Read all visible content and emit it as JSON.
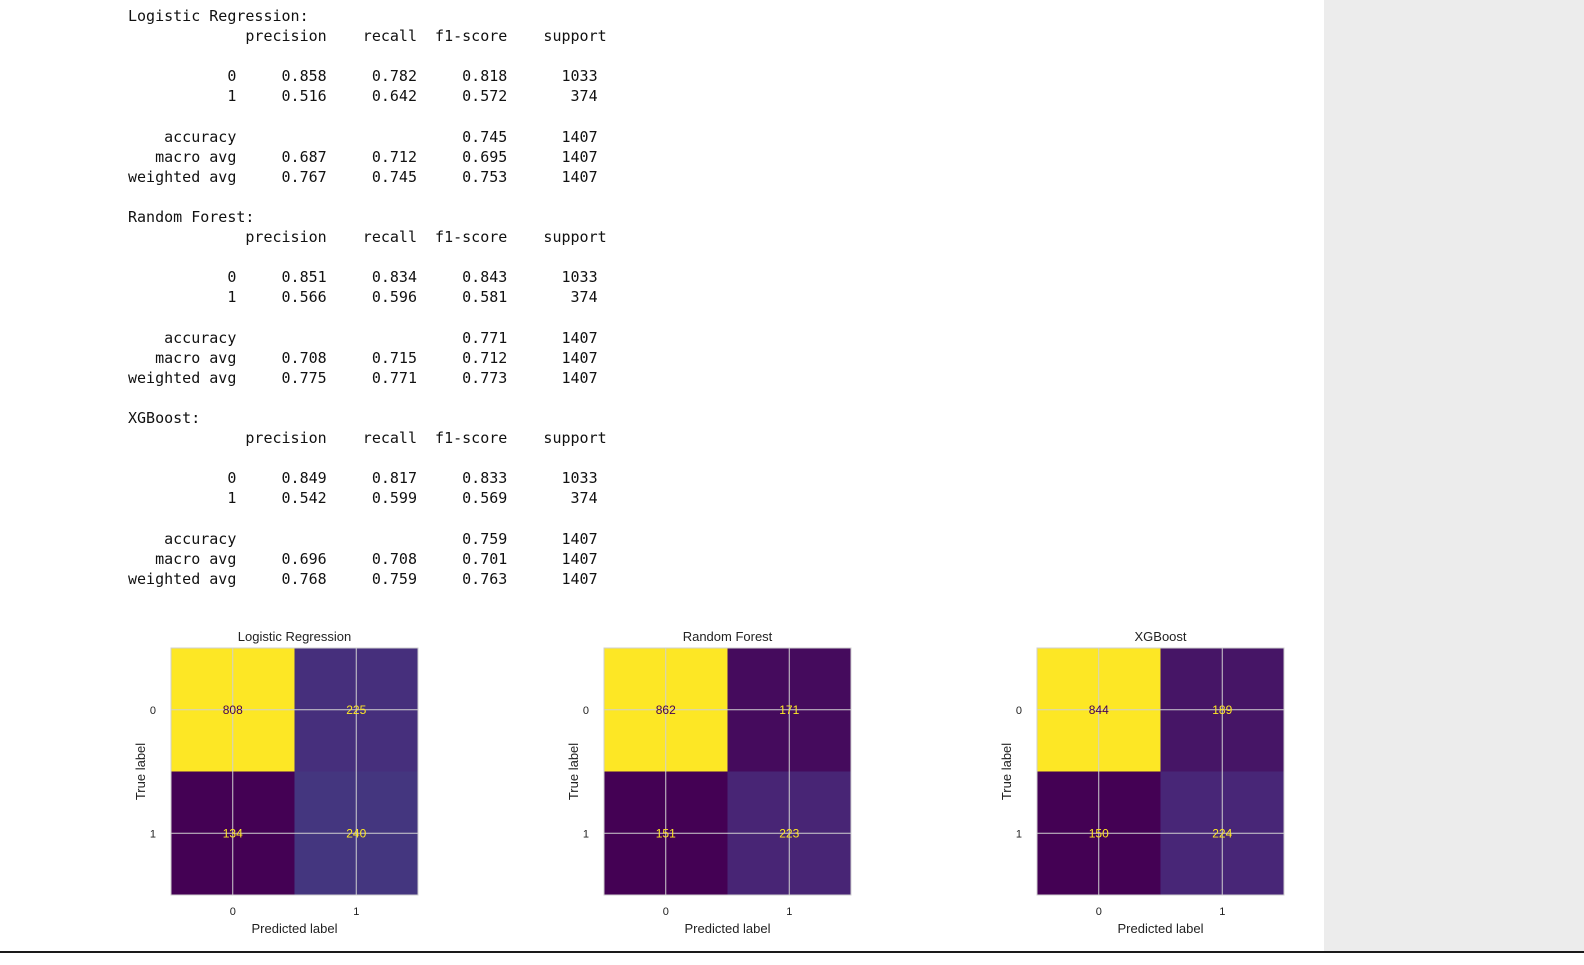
{
  "reports": [
    {
      "title": "Logistic Regression:",
      "header": [
        "precision",
        "recall",
        "f1-score",
        "support"
      ],
      "class_rows": [
        {
          "label": "0",
          "precision": "0.858",
          "recall": "0.782",
          "f1": "0.818",
          "support": "1033"
        },
        {
          "label": "1",
          "precision": "0.516",
          "recall": "0.642",
          "f1": "0.572",
          "support": "374"
        }
      ],
      "summary_rows": [
        {
          "label": "accuracy",
          "precision": "",
          "recall": "",
          "f1": "0.745",
          "support": "1407"
        },
        {
          "label": "macro avg",
          "precision": "0.687",
          "recall": "0.712",
          "f1": "0.695",
          "support": "1407"
        },
        {
          "label": "weighted avg",
          "precision": "0.767",
          "recall": "0.745",
          "f1": "0.753",
          "support": "1407"
        }
      ]
    },
    {
      "title": "Random Forest:",
      "header": [
        "precision",
        "recall",
        "f1-score",
        "support"
      ],
      "class_rows": [
        {
          "label": "0",
          "precision": "0.851",
          "recall": "0.834",
          "f1": "0.843",
          "support": "1033"
        },
        {
          "label": "1",
          "precision": "0.566",
          "recall": "0.596",
          "f1": "0.581",
          "support": "374"
        }
      ],
      "summary_rows": [
        {
          "label": "accuracy",
          "precision": "",
          "recall": "",
          "f1": "0.771",
          "support": "1407"
        },
        {
          "label": "macro avg",
          "precision": "0.708",
          "recall": "0.715",
          "f1": "0.712",
          "support": "1407"
        },
        {
          "label": "weighted avg",
          "precision": "0.775",
          "recall": "0.771",
          "f1": "0.773",
          "support": "1407"
        }
      ]
    },
    {
      "title": "XGBoost:",
      "header": [
        "precision",
        "recall",
        "f1-score",
        "support"
      ],
      "class_rows": [
        {
          "label": "0",
          "precision": "0.849",
          "recall": "0.817",
          "f1": "0.833",
          "support": "1033"
        },
        {
          "label": "1",
          "precision": "0.542",
          "recall": "0.599",
          "f1": "0.569",
          "support": "374"
        }
      ],
      "summary_rows": [
        {
          "label": "accuracy",
          "precision": "",
          "recall": "",
          "f1": "0.759",
          "support": "1407"
        },
        {
          "label": "macro avg",
          "precision": "0.696",
          "recall": "0.708",
          "f1": "0.701",
          "support": "1407"
        },
        {
          "label": "weighted avg",
          "precision": "0.768",
          "recall": "0.759",
          "f1": "0.763",
          "support": "1407"
        }
      ]
    }
  ],
  "colors": {
    "viridis_low": "#440154",
    "viridis_high": "#fde725",
    "text_on_dark": "#fde725",
    "text_on_light": "#440154",
    "grid": "#d0d0d0",
    "frame": "#cfcfcf"
  },
  "chart_data": [
    {
      "type": "heatmap",
      "title": "Logistic Regression",
      "xlabel": "Predicted label",
      "ylabel": "True label",
      "x_ticks": [
        "0",
        "1"
      ],
      "y_ticks": [
        "0",
        "1"
      ],
      "matrix": [
        [
          808,
          225
        ],
        [
          134,
          240
        ]
      ],
      "colormap": "viridis",
      "grid": true
    },
    {
      "type": "heatmap",
      "title": "Random Forest",
      "xlabel": "Predicted label",
      "ylabel": "True label",
      "x_ticks": [
        "0",
        "1"
      ],
      "y_ticks": [
        "0",
        "1"
      ],
      "matrix": [
        [
          862,
          171
        ],
        [
          151,
          223
        ]
      ],
      "colormap": "viridis",
      "grid": true
    },
    {
      "type": "heatmap",
      "title": "XGBoost",
      "xlabel": "Predicted label",
      "ylabel": "True label",
      "x_ticks": [
        "0",
        "1"
      ],
      "y_ticks": [
        "0",
        "1"
      ],
      "matrix": [
        [
          844,
          189
        ],
        [
          150,
          224
        ]
      ],
      "colormap": "viridis",
      "grid": true
    }
  ]
}
